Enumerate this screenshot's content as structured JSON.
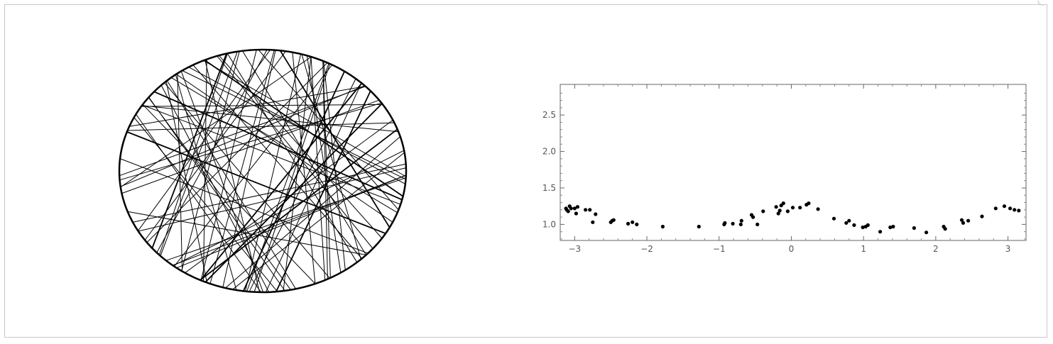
{
  "chart_data": [
    {
      "type": "line",
      "title": "",
      "xlabel": "",
      "ylabel": "",
      "description_kind": "billiard-chords",
      "boundary": "ellipse",
      "grid": false,
      "legend": "none",
      "stroke_color": "#000000"
    },
    {
      "type": "scatter",
      "title": "",
      "xlabel": "",
      "ylabel": "",
      "xlim": [
        -3.2,
        3.25
      ],
      "ylim": [
        0.78,
        2.92
      ],
      "grid": false,
      "legend": "none",
      "frame": true,
      "x_ticks": [
        "-3",
        "-2",
        "-1",
        "0",
        "1",
        "2",
        "3"
      ],
      "x_tick_values": [
        -3,
        -2,
        -1,
        0,
        1,
        2,
        3
      ],
      "y_ticks": [
        "1.0",
        "1.5",
        "2.0",
        "2.5"
      ],
      "y_tick_values": [
        1.0,
        1.5,
        2.0,
        2.5
      ],
      "point_color": "#000000",
      "x": [
        -3.12,
        -3.11,
        -3.09,
        -3.07,
        -3.05,
        -3.0,
        -2.98,
        -2.96,
        -2.85,
        -2.79,
        -2.75,
        -2.71,
        -2.5,
        -2.48,
        -2.46,
        -2.26,
        -2.2,
        -2.14,
        -1.78,
        -1.28,
        -0.93,
        -0.92,
        -0.81,
        -0.7,
        -0.69,
        -0.55,
        -0.53,
        -0.47,
        -0.39,
        -0.21,
        -0.18,
        -0.16,
        -0.14,
        -0.11,
        -0.05,
        0.02,
        0.12,
        0.21,
        0.24,
        0.37,
        0.59,
        0.76,
        0.8,
        0.87,
        0.99,
        1.03,
        1.06,
        1.23,
        1.37,
        1.41,
        1.7,
        1.87,
        2.11,
        2.13,
        2.36,
        2.38,
        2.45,
        2.64,
        2.83,
        2.95,
        3.03,
        3.09,
        3.15
      ],
      "y": [
        1.22,
        1.2,
        1.18,
        1.25,
        1.22,
        1.22,
        1.15,
        1.24,
        1.2,
        1.2,
        1.03,
        1.14,
        1.03,
        1.05,
        1.06,
        1.01,
        1.03,
        1.0,
        0.97,
        0.97,
        1.0,
        1.02,
        1.01,
        1.0,
        1.05,
        1.13,
        1.1,
        1.0,
        1.18,
        1.24,
        1.15,
        1.19,
        1.26,
        1.29,
        1.18,
        1.23,
        1.23,
        1.27,
        1.29,
        1.21,
        1.08,
        1.02,
        1.05,
        0.99,
        0.96,
        0.97,
        0.99,
        0.9,
        0.96,
        0.97,
        0.95,
        0.89,
        0.97,
        0.94,
        1.06,
        1.02,
        1.05,
        1.11,
        1.22,
        1.25,
        1.22,
        1.2,
        1.19
      ]
    }
  ]
}
